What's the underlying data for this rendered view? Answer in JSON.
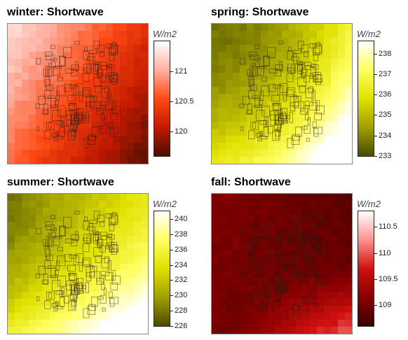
{
  "chart_data": [
    {
      "type": "heatmap",
      "title": "winter: Shortwave",
      "legend_title": "W/m2",
      "value_range": [
        119.6,
        121.5
      ],
      "ticks": [
        "120",
        "120.5",
        "121"
      ],
      "tick_values": [
        120,
        120.5,
        121
      ],
      "colors": [
        "#4a0e00",
        "#c41a00",
        "#ff4a14",
        "#ffb0a0",
        "#ffffff"
      ],
      "gradient": {
        "low_corner": "bottom-right",
        "high_corner": "top-left"
      },
      "overlay": "building footprints"
    },
    {
      "type": "heatmap",
      "title": "spring: Shortwave",
      "legend_title": "W/m2",
      "value_range": [
        233,
        238.6
      ],
      "ticks": [
        "233",
        "234",
        "235",
        "236",
        "237",
        "238"
      ],
      "tick_values": [
        233,
        234,
        235,
        236,
        237,
        238
      ],
      "colors": [
        "#4a4a00",
        "#a0a000",
        "#e0e000",
        "#ffff60",
        "#ffffff"
      ],
      "gradient": {
        "low_corner": "left",
        "high_corner": "bottom-right"
      },
      "overlay": "building footprints"
    },
    {
      "type": "heatmap",
      "title": "summer: Shortwave",
      "legend_title": "W/m2",
      "value_range": [
        226,
        241
      ],
      "ticks": [
        "226",
        "228",
        "230",
        "232",
        "234",
        "236",
        "238",
        "240"
      ],
      "tick_values": [
        226,
        228,
        230,
        232,
        234,
        236,
        238,
        240
      ],
      "colors": [
        "#4a4a00",
        "#a0a000",
        "#e0e000",
        "#ffff60",
        "#ffffff"
      ],
      "gradient": {
        "low_corner": "left",
        "high_corner": "bottom-right"
      },
      "overlay": "building footprints"
    },
    {
      "type": "heatmap",
      "title": "fall: Shortwave",
      "legend_title": "W/m2",
      "value_range": [
        108.6,
        110.8
      ],
      "ticks": [
        "109",
        "109.5",
        "110",
        "110.5"
      ],
      "tick_values": [
        109,
        109.5,
        110,
        110.5
      ],
      "colors": [
        "#3a0000",
        "#8a0000",
        "#d01010",
        "#ff9090",
        "#ffffff"
      ],
      "gradient": {
        "low_corner": "top-right",
        "high_corner": "bottom-right"
      },
      "overlay": "building footprints"
    }
  ]
}
